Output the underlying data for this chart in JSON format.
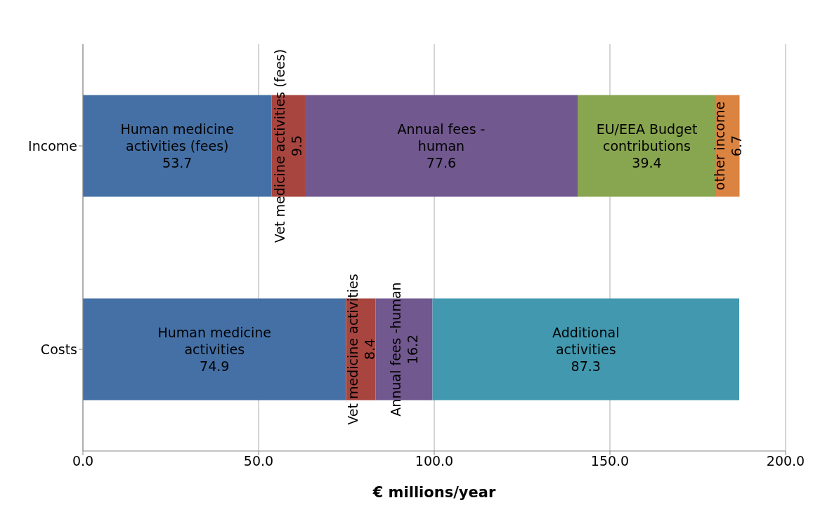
{
  "chart_data": {
    "type": "bar",
    "orientation": "horizontal",
    "stacked": true,
    "grid": "x",
    "xlabel": "€ millions/year",
    "categories": [
      "Income",
      "Costs"
    ],
    "xlim": [
      0,
      200
    ],
    "xticks": [
      {
        "value": 0,
        "label": "0.0"
      },
      {
        "value": 50,
        "label": "50.0"
      },
      {
        "value": 100,
        "label": "100.0"
      },
      {
        "value": 150,
        "label": "150.0"
      },
      {
        "value": 200,
        "label": "200.0"
      }
    ],
    "series": [
      {
        "color": "#4470a5",
        "values": [
          53.7,
          74.9
        ],
        "value_labels": [
          "Human medicine\nactivities (fees)\n53.7",
          "Human medicine\nactivities\n74.9"
        ]
      },
      {
        "color": "#a8453f",
        "values": [
          9.5,
          8.4
        ],
        "value_labels": [
          "Vet medicine activities (fees)\n9.5",
          "Vet medicine activities\n8.4"
        ]
      },
      {
        "color": "#71588f",
        "values": [
          77.6,
          16.2
        ],
        "value_labels": [
          "Annual fees -\nhuman\n77.6",
          "Annual fees -human\n16.2"
        ]
      },
      {
        "color": "#88a54f",
        "values": [
          39.4,
          null
        ],
        "value_labels": [
          "EU/EEA Budget\ncontributions\n39.4",
          null
        ]
      },
      {
        "color": "#db8442",
        "values": [
          6.7,
          null
        ],
        "value_labels": [
          "other income\n6.7",
          null
        ]
      },
      {
        "color": "#4198af",
        "values": [
          null,
          87.3
        ],
        "value_labels": [
          null,
          "Additional\nactivities\n87.3"
        ]
      }
    ]
  }
}
